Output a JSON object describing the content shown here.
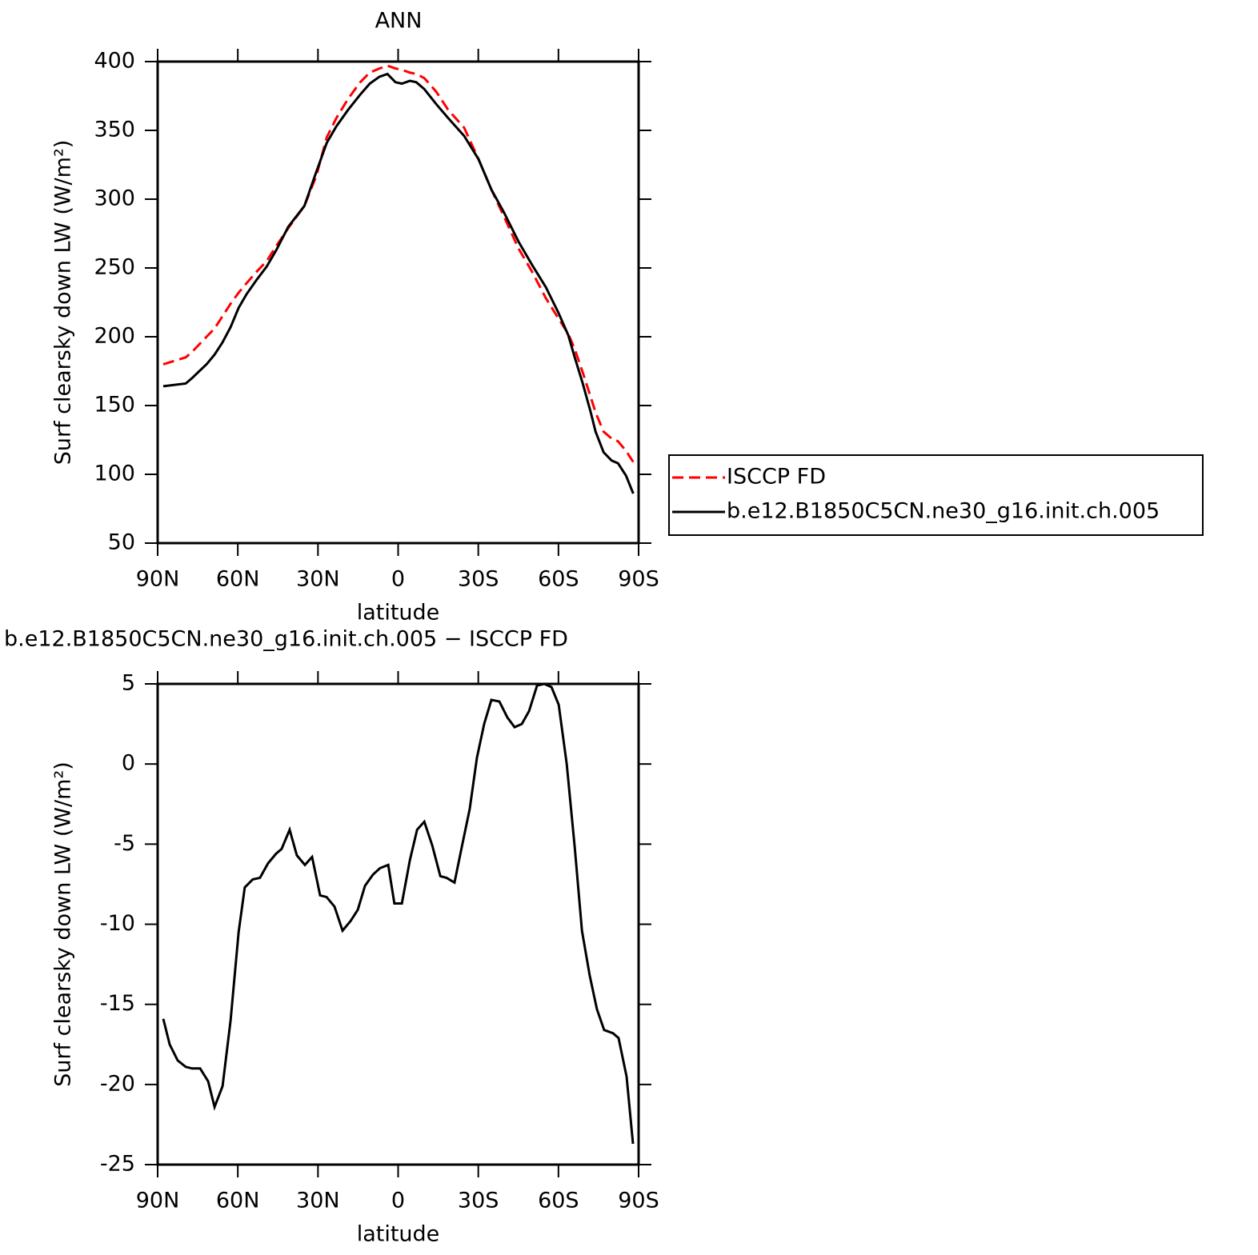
{
  "chart_data": [
    {
      "type": "line",
      "title": "ANN",
      "x_label": "latitude",
      "y_label": "Surf clearsky down LW (W/m²)",
      "x": [
        87.9,
        79.5,
        77.1,
        71.7,
        68.7,
        65.7,
        62.7,
        59.7,
        56.7,
        53.1,
        49.2,
        45.6,
        41.1,
        35.1,
        30.6,
        26.7,
        23.1,
        18.7,
        14.2,
        10.6,
        7.0,
        4.0,
        1.0,
        -1.4,
        -4.4,
        -6.8,
        -9.8,
        -14.3,
        -18.7,
        -24.7,
        -30.1,
        -34.9,
        -39.7,
        -45.1,
        -50.2,
        -55.3,
        -60.1,
        -63.7,
        -66.1,
        -69.1,
        -72.1,
        -73.9,
        -76.9,
        -79.9,
        -82.3,
        -85.3,
        -88.0
      ],
      "series": [
        {
          "name": "ISCCP FD",
          "color": "#ff0000",
          "dashed": true,
          "values": [
            180,
            185,
            189,
            200,
            206,
            215,
            224,
            232,
            239,
            247,
            255,
            266,
            279,
            295,
            317,
            345,
            359,
            373,
            385,
            392,
            395,
            397,
            395,
            394,
            392,
            391,
            388,
            378,
            365,
            352,
            329,
            307,
            287,
            264,
            247,
            228,
            213,
            202,
            191,
            174,
            156,
            145,
            131,
            126,
            124,
            117,
            109
          ]
        },
        {
          "name": "b.e12.B1850C5CN.ne30_g16.init.ch.005",
          "color": "#000000",
          "dashed": false,
          "values": [
            164,
            166,
            170,
            180,
            187,
            196,
            207,
            221,
            231,
            241,
            251,
            263,
            280,
            295,
            320,
            341,
            353,
            365,
            376,
            384,
            389,
            391,
            385,
            384,
            386,
            385,
            380,
            369,
            359,
            346,
            329,
            307,
            290,
            269,
            252,
            236,
            217,
            201,
            185,
            166,
            145,
            131,
            116,
            110,
            108,
            99,
            86
          ]
        }
      ],
      "xlim": [
        90,
        -90
      ],
      "xticks": [
        {
          "value": 90,
          "label": "90N"
        },
        {
          "value": 60,
          "label": "60N"
        },
        {
          "value": 30,
          "label": "30N"
        },
        0,
        {
          "value": -30,
          "label": "30S"
        },
        {
          "value": -60,
          "label": "60S"
        },
        {
          "value": -90,
          "label": "90S"
        }
      ],
      "ylim": [
        50,
        400
      ],
      "yticks": [
        50,
        100,
        150,
        200,
        250,
        300,
        350,
        400
      ],
      "legend": "right"
    },
    {
      "type": "line",
      "title": "b.e12.B1850C5CN.ne30_g16.init.ch.005 − ISCCP FD",
      "x_label": "latitude",
      "y_label": "Surf clearsky down LW (W/m²)",
      "x": [
        87.9,
        85.5,
        82.5,
        79.5,
        77.1,
        74.1,
        71.1,
        68.7,
        65.7,
        62.7,
        59.7,
        57.4,
        54.4,
        51.7,
        48.7,
        45.7,
        43.6,
        40.6,
        37.9,
        34.9,
        32.2,
        29.2,
        26.8,
        23.8,
        20.8,
        17.8,
        15.1,
        12.4,
        9.4,
        6.8,
        3.7,
        1.4,
        -1.4,
        -4.4,
        -7.1,
        -9.8,
        -12.8,
        -15.8,
        -18.1,
        -21.1,
        -23.8,
        -26.8,
        -29.5,
        -32.2,
        -34.9,
        -37.9,
        -40.9,
        -43.6,
        -46.3,
        -49.0,
        -52.0,
        -54.7,
        -57.4,
        -60.1,
        -63.1,
        -66.1,
        -68.8,
        -71.7,
        -74.4,
        -77.1,
        -80.4,
        -82.5,
        -85.5,
        -87.9
      ],
      "values": [
        -15.9,
        -17.5,
        -18.5,
        -18.9,
        -19.0,
        -19.0,
        -19.8,
        -21.4,
        -20.1,
        -16.0,
        -10.5,
        -7.7,
        -7.2,
        -7.1,
        -6.2,
        -5.6,
        -5.3,
        -4.1,
        -5.7,
        -6.3,
        -5.8,
        -8.2,
        -8.3,
        -8.9,
        -10.4,
        -9.8,
        -9.1,
        -7.6,
        -6.9,
        -6.5,
        -6.3,
        -8.7,
        -8.7,
        -6.0,
        -4.1,
        -3.6,
        -5.1,
        -7.0,
        -7.1,
        -7.4,
        -5.2,
        -2.8,
        0.4,
        2.5,
        4.0,
        3.9,
        2.9,
        2.3,
        2.5,
        3.3,
        4.9,
        5.0,
        4.8,
        3.7,
        0.0,
        -5.2,
        -10.4,
        -13.2,
        -15.3,
        -16.6,
        -16.8,
        -17.1,
        -19.5,
        -23.7
      ],
      "color": "#000000",
      "xlim": [
        90,
        -90
      ],
      "xticks": [
        {
          "value": 90,
          "label": "90N"
        },
        {
          "value": 60,
          "label": "60N"
        },
        {
          "value": 30,
          "label": "30N"
        },
        0,
        {
          "value": -30,
          "label": "30S"
        },
        {
          "value": -60,
          "label": "60S"
        },
        {
          "value": -90,
          "label": "90S"
        }
      ],
      "ylim": [
        -25,
        5
      ],
      "yticks": [
        -25,
        -20,
        -15,
        -10,
        -5,
        0,
        5
      ]
    }
  ]
}
